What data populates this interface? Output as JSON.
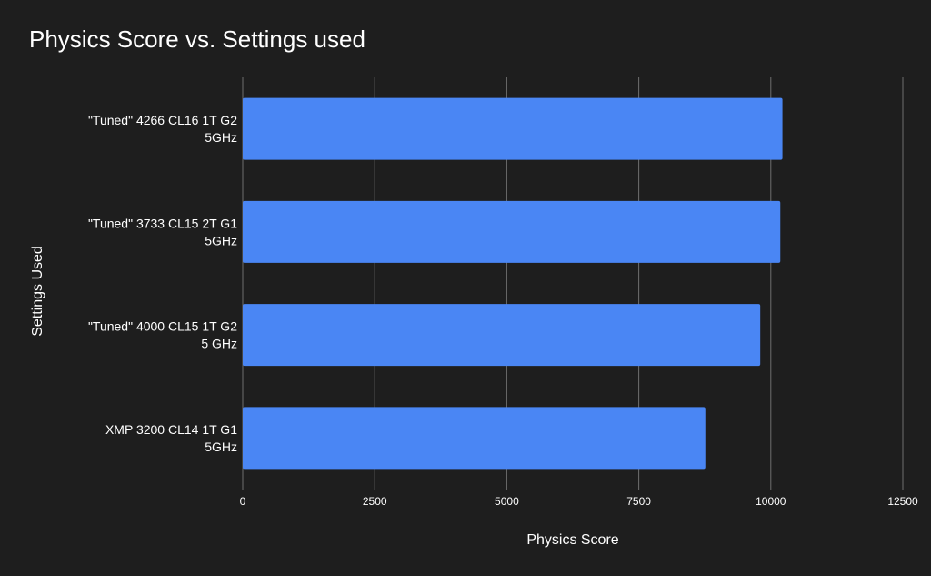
{
  "chart_data": {
    "type": "bar",
    "orientation": "horizontal",
    "title": "Physics Score vs. Settings used",
    "xlabel": "Physics Score",
    "ylabel": "Settings Used",
    "categories": [
      [
        "\"Tuned\" 4266 CL16 1T G2",
        "5GHz"
      ],
      [
        "\"Tuned\" 3733 CL15 2T G1",
        "5GHz"
      ],
      [
        "\"Tuned\" 4000 CL15 1T G2",
        "5 GHz"
      ],
      [
        "XMP 3200 CL14 1T G1",
        "5GHz"
      ]
    ],
    "values": [
      10220,
      10180,
      9800,
      8760
    ],
    "xlim": [
      0,
      12500
    ],
    "xticks": [
      "0",
      "2500",
      "5000",
      "7500",
      "10000",
      "12500"
    ],
    "grid": "vertical",
    "legend": "none",
    "colors": {
      "background": "#1e1e1e",
      "bar": "#4a86f4",
      "grid": "#6e6e6e",
      "text": "#ffffff"
    }
  }
}
